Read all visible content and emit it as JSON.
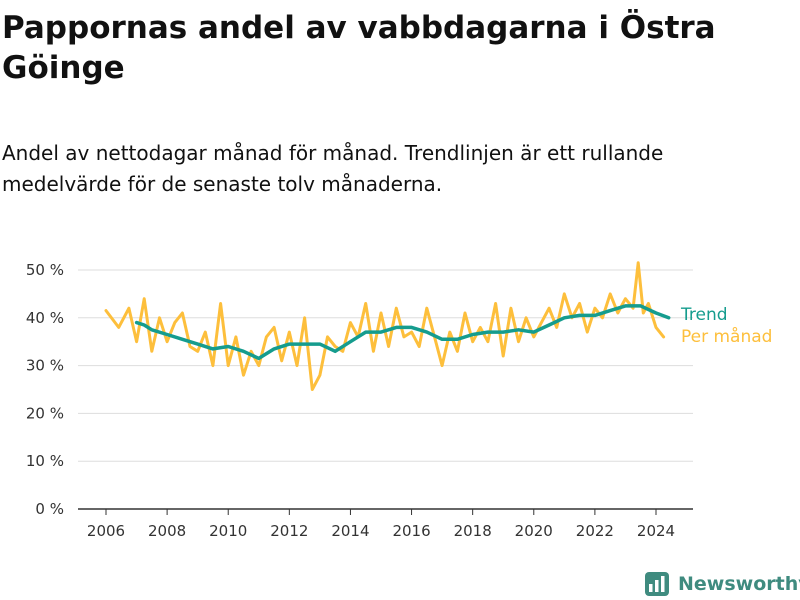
{
  "title": "Pappornas andel av vabbdagarna i Östra Göinge",
  "subtitle": "Andel av nettodagar månad för månad. Trendlinjen är ett rullande medelvärde för de senaste tolv månaderna.",
  "brand": {
    "name": "Newsworthy",
    "icon": "newsworthy-logo-icon"
  },
  "colors": {
    "trend": "#159c8e",
    "monthly": "#fdbf3c",
    "grid": "#dddddd",
    "axis": "#333333"
  },
  "chart_data": {
    "type": "line",
    "title": "Pappornas andel av vabbdagarna i Östra Göinge",
    "xlabel": "",
    "ylabel": "",
    "xlim": [
      "2006-01",
      "2024-06"
    ],
    "ylim": [
      0,
      50
    ],
    "x_ticks": [
      "2006",
      "2008",
      "2010",
      "2012",
      "2014",
      "2016",
      "2018",
      "2020",
      "2022",
      "2024"
    ],
    "y_ticks": [
      "0 %",
      "10 %",
      "20 %",
      "30 %",
      "40 %",
      "50 %"
    ],
    "grid": "horizontal",
    "legend_position": "right, next to line ends",
    "series": [
      {
        "name": "Per månad",
        "color": "#fdbf3c",
        "x": [
          "2006-01",
          "2006-06",
          "2006-10",
          "2007-01",
          "2007-04",
          "2007-07",
          "2007-10",
          "2008-01",
          "2008-04",
          "2008-07",
          "2008-10",
          "2009-01",
          "2009-04",
          "2009-07",
          "2009-10",
          "2010-01",
          "2010-04",
          "2010-07",
          "2010-10",
          "2011-01",
          "2011-04",
          "2011-07",
          "2011-10",
          "2012-01",
          "2012-04",
          "2012-07",
          "2012-10",
          "2013-01",
          "2013-04",
          "2013-07",
          "2013-10",
          "2014-01",
          "2014-04",
          "2014-07",
          "2014-10",
          "2015-01",
          "2015-04",
          "2015-07",
          "2015-10",
          "2016-01",
          "2016-04",
          "2016-07",
          "2016-10",
          "2017-01",
          "2017-04",
          "2017-07",
          "2017-10",
          "2018-01",
          "2018-04",
          "2018-07",
          "2018-10",
          "2019-01",
          "2019-04",
          "2019-07",
          "2019-10",
          "2020-01",
          "2020-04",
          "2020-07",
          "2020-10",
          "2021-01",
          "2021-04",
          "2021-07",
          "2021-10",
          "2022-01",
          "2022-04",
          "2022-07",
          "2022-10",
          "2023-01",
          "2023-04",
          "2023-06",
          "2023-08",
          "2023-10",
          "2024-01",
          "2024-04"
        ],
        "values": [
          41.5,
          38,
          42,
          35,
          44,
          33,
          40,
          35,
          39,
          41,
          34,
          33,
          37,
          30,
          43,
          30,
          36,
          28,
          33,
          30,
          36,
          38,
          31,
          37,
          30,
          40,
          25,
          28,
          36,
          34,
          33,
          39,
          36,
          43,
          33,
          41,
          34,
          42,
          36,
          37,
          34,
          42,
          36,
          30,
          37,
          33,
          41,
          35,
          38,
          35,
          43,
          32,
          42,
          35,
          40,
          36,
          39,
          42,
          38,
          45,
          40,
          43,
          37,
          42,
          40,
          45,
          41,
          44,
          42,
          51.5,
          41,
          43,
          38,
          36
        ]
      },
      {
        "name": "Trend",
        "color": "#159c8e",
        "x": [
          "2007-01",
          "2007-04",
          "2007-07",
          "2008-01",
          "2008-07",
          "2009-01",
          "2009-07",
          "2010-01",
          "2010-07",
          "2011-01",
          "2011-07",
          "2012-01",
          "2012-07",
          "2013-01",
          "2013-07",
          "2014-01",
          "2014-07",
          "2015-01",
          "2015-07",
          "2016-01",
          "2016-07",
          "2017-01",
          "2017-07",
          "2018-01",
          "2018-07",
          "2019-01",
          "2019-07",
          "2020-01",
          "2020-07",
          "2021-01",
          "2021-07",
          "2022-01",
          "2022-07",
          "2023-01",
          "2023-07",
          "2024-01",
          "2024-06"
        ],
        "values": [
          39,
          38.5,
          37.5,
          36.5,
          35.5,
          34.5,
          33.5,
          34,
          33,
          31.5,
          33.5,
          34.5,
          34.5,
          34.5,
          33,
          35,
          37,
          37,
          38,
          38,
          37,
          35.5,
          35.5,
          36.5,
          37,
          37,
          37.5,
          37,
          38.5,
          40,
          40.5,
          40.5,
          41.5,
          42.5,
          42.5,
          41,
          40
        ]
      }
    ]
  }
}
